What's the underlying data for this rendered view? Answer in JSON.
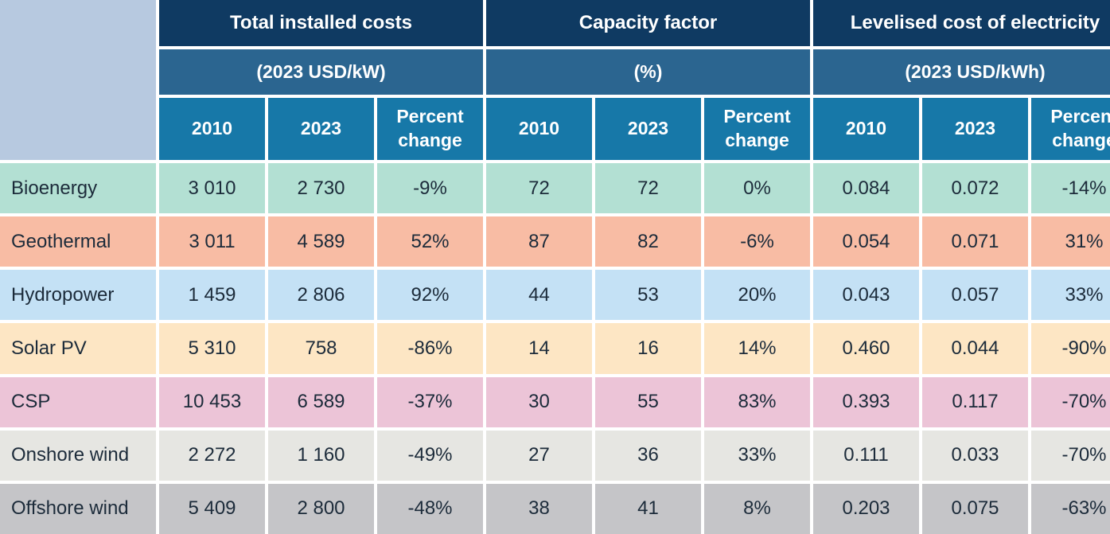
{
  "header": {
    "groups": [
      {
        "title": "Total installed costs",
        "unit": "(2023 USD/kW)"
      },
      {
        "title": "Capacity factor",
        "unit": "(%)"
      },
      {
        "title": "Levelised cost of electricity",
        "unit": "(2023 USD/kWh)"
      }
    ],
    "subcolumns": [
      "2010",
      "2023",
      "Percent\nchange"
    ]
  },
  "colors": {
    "corner": "#b7c9e0",
    "header_dark": "#0f3a62",
    "header_mid": "#2b6590",
    "header_light": "#1778a8"
  },
  "rows": [
    {
      "label": "Bioenergy",
      "color": "#b3e0d3",
      "values": [
        "3 010",
        "2 730",
        "-9%",
        "72",
        "72",
        "0%",
        "0.084",
        "0.072",
        "-14%"
      ]
    },
    {
      "label": "Geothermal",
      "color": "#f8bca4",
      "values": [
        "3 011",
        "4 589",
        "52%",
        "87",
        "82",
        "-6%",
        "0.054",
        "0.071",
        "31%"
      ]
    },
    {
      "label": "Hydropower",
      "color": "#c4e1f5",
      "values": [
        "1 459",
        "2 806",
        "92%",
        "44",
        "53",
        "20%",
        "0.043",
        "0.057",
        "33%"
      ]
    },
    {
      "label": "Solar PV",
      "color": "#fde6c4",
      "values": [
        "5 310",
        "758",
        "-86%",
        "14",
        "16",
        "14%",
        "0.460",
        "0.044",
        "-90%"
      ]
    },
    {
      "label": "CSP",
      "color": "#ecc4d7",
      "values": [
        "10 453",
        "6 589",
        "-37%",
        "30",
        "55",
        "83%",
        "0.393",
        "0.117",
        "-70%"
      ]
    },
    {
      "label": "Onshore wind",
      "color": "#e6e6e2",
      "values": [
        "2 272",
        "1 160",
        "-49%",
        "27",
        "36",
        "33%",
        "0.111",
        "0.033",
        "-70%"
      ]
    },
    {
      "label": "Offshore wind",
      "color": "#c5c5c8",
      "values": [
        "5 409",
        "2 800",
        "-48%",
        "38",
        "41",
        "8%",
        "0.203",
        "0.075",
        "-63%"
      ]
    }
  ]
}
